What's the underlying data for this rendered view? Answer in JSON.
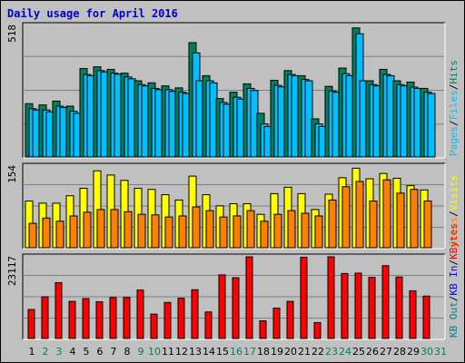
{
  "title": "Daily usage for April 2016",
  "colors": {
    "frame_bg": "#c0c0c0",
    "hits": "#00805c",
    "files": "#00bfff",
    "visits": "#ffff00",
    "sites": "#ff8000",
    "kbytes": "#ff0000",
    "kbin": "#0000ff",
    "kbout": "#008080",
    "weekend_label": "#00805c",
    "weekday_label": "#000000"
  },
  "chart_data": [
    {
      "type": "bar",
      "name": "hits-files",
      "title": "Daily usage for April 2016",
      "ylabels": [
        "Hits",
        "Files",
        "Pages"
      ],
      "ytop": 518,
      "x": [
        1,
        2,
        3,
        4,
        5,
        6,
        7,
        8,
        9,
        10,
        11,
        12,
        13,
        14,
        15,
        16,
        17,
        18,
        19,
        20,
        21,
        22,
        23,
        24,
        25,
        26,
        27,
        28,
        29,
        30,
        31
      ],
      "series": [
        {
          "name": "Hits",
          "values": [
            210,
            205,
            220,
            200,
            348,
            355,
            345,
            330,
            300,
            292,
            280,
            272,
            450,
            320,
            230,
            255,
            288,
            172,
            302,
            340,
            320,
            150,
            278,
            350,
            508,
            300,
            345,
            300,
            295,
            270,
            0
          ]
        },
        {
          "name": "Files",
          "values": [
            190,
            185,
            200,
            180,
            325,
            340,
            330,
            315,
            285,
            270,
            265,
            255,
            410,
            300,
            215,
            235,
            270,
            130,
            282,
            325,
            305,
            130,
            260,
            328,
            485,
            285,
            325,
            285,
            275,
            255,
            0
          ]
        },
        {
          "name": "Pages",
          "values": [
            185,
            178,
            195,
            172,
            320,
            335,
            326,
            308,
            280,
            265,
            258,
            250,
            300,
            292,
            208,
            228,
            262,
            120,
            276,
            320,
            300,
            120,
            255,
            320,
            300,
            280,
            320,
            280,
            270,
            250,
            0
          ]
        }
      ]
    },
    {
      "type": "bar",
      "name": "visits-sites",
      "ylabels": [
        "Visits",
        "Sites"
      ],
      "ytop": 154,
      "x": [
        1,
        2,
        3,
        4,
        5,
        6,
        7,
        8,
        9,
        10,
        11,
        12,
        13,
        14,
        15,
        16,
        17,
        18,
        19,
        20,
        21,
        22,
        23,
        24,
        25,
        26,
        27,
        28,
        29,
        30,
        31
      ],
      "series": [
        {
          "name": "Visits",
          "values": [
            88,
            84,
            84,
            98,
            112,
            145,
            137,
            127,
            112,
            110,
            100,
            90,
            135,
            100,
            79,
            83,
            83,
            63,
            102,
            114,
            102,
            72,
            101,
            132,
            150,
            130,
            140,
            131,
            117,
            109,
            0
          ]
        },
        {
          "name": "Sites",
          "values": [
            46,
            56,
            50,
            60,
            67,
            72,
            72,
            68,
            63,
            62,
            58,
            60,
            77,
            70,
            58,
            60,
            70,
            50,
            63,
            70,
            65,
            60,
            90,
            115,
            125,
            88,
            128,
            103,
            110,
            88,
            0
          ]
        }
      ]
    },
    {
      "type": "bar",
      "name": "kbytes",
      "ylabels": [
        "KBytes",
        "KB In",
        "KB Out"
      ],
      "ytop": 23117,
      "x": [
        1,
        2,
        3,
        4,
        5,
        6,
        7,
        8,
        9,
        10,
        11,
        12,
        13,
        14,
        15,
        16,
        17,
        18,
        19,
        20,
        21,
        22,
        23,
        24,
        25,
        26,
        27,
        28,
        29,
        30,
        31
      ],
      "series": [
        {
          "name": "KBytes",
          "values": [
            8200,
            11800,
            15800,
            10500,
            11300,
            10400,
            11600,
            11600,
            13700,
            6900,
            10200,
            11400,
            13800,
            7500,
            18000,
            17200,
            24000,
            5000,
            8600,
            10500,
            23000,
            4500,
            24400,
            18400,
            18500,
            17300,
            20600,
            17400,
            13500,
            12000,
            0
          ]
        }
      ]
    }
  ],
  "x_axis": {
    "labels": [
      "1",
      "2",
      "3",
      "4",
      "5",
      "6",
      "7",
      "8",
      "9",
      "10",
      "11",
      "12",
      "13",
      "14",
      "15",
      "16",
      "17",
      "18",
      "19",
      "20",
      "21",
      "22",
      "23",
      "24",
      "25",
      "26",
      "27",
      "28",
      "29",
      "30",
      "31"
    ],
    "weekend_days": [
      2,
      3,
      9,
      10,
      16,
      17,
      23,
      24,
      30,
      31
    ]
  }
}
